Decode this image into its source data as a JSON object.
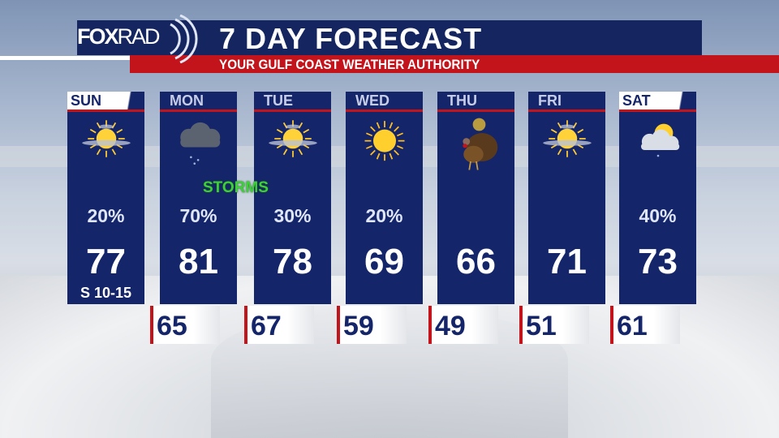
{
  "header": {
    "logo": "FOXRAD",
    "logo_fox": "FOX",
    "logo_rad": "RAD",
    "title": "7 DAY FORECAST",
    "subtitle": "YOUR GULF COAST WEATHER AUTHORITY"
  },
  "colors": {
    "navy": "#15256a",
    "red": "#c3141c",
    "storms_green": "#3fcf3a"
  },
  "days": [
    {
      "day": "SUN",
      "icon": "sun-behind-cloud-icon",
      "pop": "20%",
      "high": "77",
      "wind": "S 10-15",
      "low": null
    },
    {
      "day": "MON",
      "icon": "storm-cloud-icon",
      "note": "STORMS",
      "pop": "70%",
      "high": "81",
      "low": "65"
    },
    {
      "day": "TUE",
      "icon": "sun-behind-cloud-icon",
      "pop": "30%",
      "high": "78",
      "low": "67"
    },
    {
      "day": "WED",
      "icon": "sun-icon",
      "pop": "20%",
      "high": "69",
      "low": "59"
    },
    {
      "day": "THU",
      "icon": "turkey-icon",
      "pop": "",
      "high": "66",
      "low": "49"
    },
    {
      "day": "FRI",
      "icon": "sun-behind-cloud-icon",
      "pop": "",
      "high": "71",
      "low": "51"
    },
    {
      "day": "SAT",
      "icon": "cloud-rain-icon",
      "pop": "40%",
      "high": "73",
      "low": "61"
    }
  ]
}
